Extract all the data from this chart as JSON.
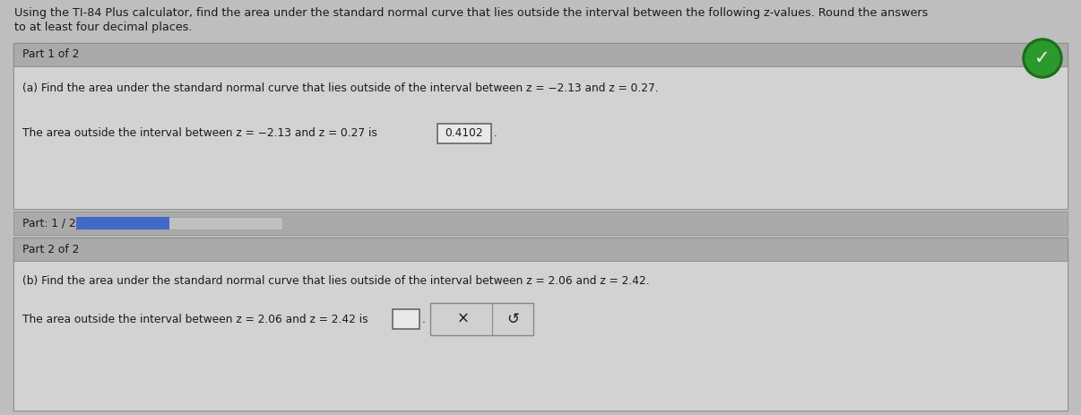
{
  "bg_color": "#bebebe",
  "header_text_line1": "Using the TI-84 Plus calculator, find the area under the standard normal curve that lies outside the interval between the following z-values. Round the answers",
  "header_text_line2": "to at least four decimal places.",
  "part1_header": "Part 1 of 2",
  "part1_question": "(a) Find the area under the standard normal curve that lies outside of the interval between z = −2.13 and z = 0.27.",
  "part1_answer_text": "The area outside the interval between z = −2.13 and z = 0.27 is",
  "part1_answer_value": "0.4102",
  "progress_label": "Part: 1 / 2",
  "progress_bar_color": "#4169c8",
  "part2_header": "Part 2 of 2",
  "part2_question": "(b) Find the area under the standard normal curve that lies outside of the interval between z = 2.06 and z = 2.42.",
  "part2_answer_text": "The area outside the interval between z = 2.06 and z = 2.42 is",
  "button_x_label": "×",
  "button_s_label": "↺",
  "checkmark_color_outer": "#1a6e1a",
  "checkmark_color_inner": "#2a9a2a",
  "font_color": "#1a1a1a",
  "font_color_light": "#333333",
  "font_size_header": 9.2,
  "font_size_body": 8.8,
  "panel_outer_bg": "#c8c8c8",
  "panel_header_bg": "#aaaaaa",
  "panel_content_bg": "#d2d2d2",
  "panel_border": "#888888",
  "progress_section_bg": "#aaaaaa",
  "progress_bar_bg": "#c0c0c0",
  "box_bg": "#e8e8e8",
  "box_border": "#666666",
  "btn_bg": "#d0d0d0",
  "btn_border": "#888888"
}
